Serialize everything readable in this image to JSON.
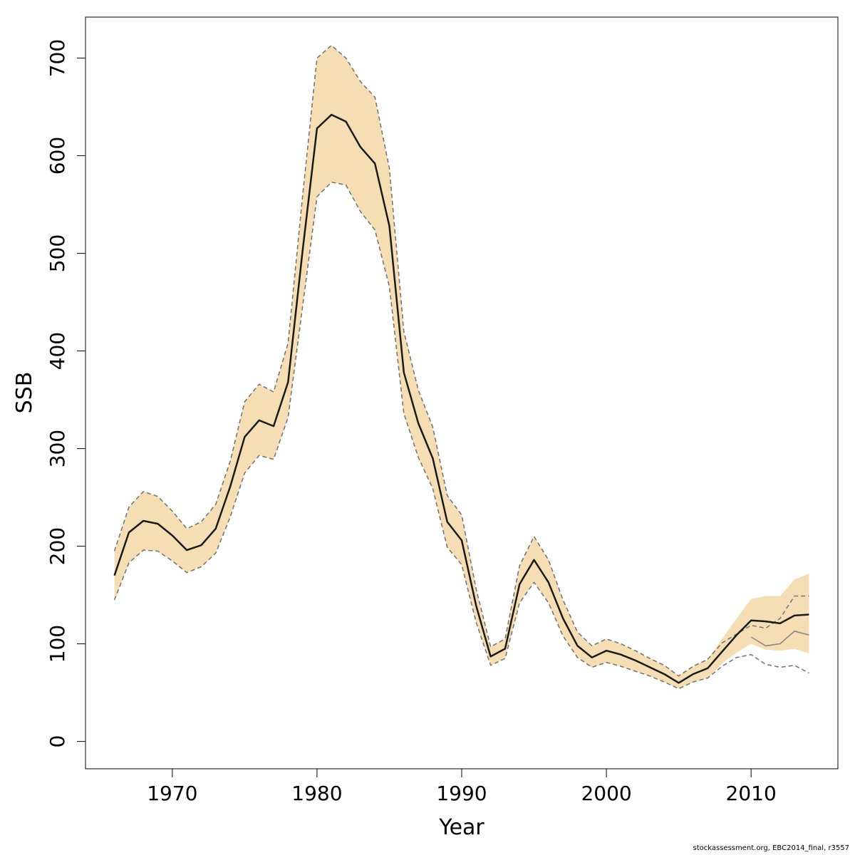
{
  "chart_data": {
    "type": "line",
    "xlabel": "Year",
    "ylabel": "SSB",
    "xlim": [
      1964,
      2016
    ],
    "ylim": [
      -28,
      742
    ],
    "x_ticks": [
      1970,
      1980,
      1990,
      2000,
      2010
    ],
    "y_ticks": [
      0,
      100,
      200,
      300,
      400,
      500,
      600,
      700
    ],
    "grid": false,
    "years": [
      1966,
      1967,
      1968,
      1969,
      1970,
      1971,
      1972,
      1973,
      1974,
      1975,
      1976,
      1977,
      1978,
      1979,
      1980,
      1981,
      1982,
      1983,
      1984,
      1985,
      1986,
      1987,
      1988,
      1989,
      1990,
      1991,
      1992,
      1993,
      1994,
      1995,
      1996,
      1997,
      1998,
      1999,
      2000,
      2001,
      2002,
      2003,
      2004,
      2005,
      2006,
      2007,
      2008,
      2009,
      2010,
      2011,
      2012,
      2013,
      2014
    ],
    "series": [
      {
        "role": "estimate",
        "color": "#1a1a1a",
        "values": [
          170,
          214,
          226,
          223,
          211,
          196,
          201,
          218,
          261,
          312,
          329,
          323,
          368,
          502,
          628,
          642,
          635,
          609,
          592,
          528,
          378,
          326,
          290,
          225,
          206,
          139,
          87,
          95,
          161,
          186,
          163,
          126,
          98,
          86,
          93,
          89,
          83,
          76,
          69,
          60,
          69,
          75,
          92,
          109,
          124,
          123,
          121,
          129,
          130
        ]
      },
      {
        "role": "upper-bound",
        "color": "#777777",
        "dashed": true,
        "values": [
          195,
          240,
          256,
          251,
          236,
          218,
          225,
          243,
          287,
          348,
          366,
          358,
          408,
          558,
          700,
          713,
          700,
          676,
          660,
          587,
          420,
          360,
          322,
          252,
          232,
          156,
          97,
          105,
          180,
          210,
          186,
          145,
          112,
          98,
          105,
          100,
          93,
          85,
          78,
          67,
          77,
          84,
          101,
          110,
          119,
          116,
          126,
          149,
          149
        ]
      },
      {
        "role": "lower-bound",
        "color": "#777777",
        "dashed": true,
        "values": [
          145,
          183,
          196,
          195,
          185,
          173,
          179,
          193,
          230,
          275,
          293,
          289,
          332,
          445,
          558,
          573,
          570,
          543,
          524,
          466,
          336,
          291,
          259,
          199,
          181,
          122,
          78,
          85,
          142,
          163,
          142,
          108,
          86,
          76,
          81,
          77,
          72,
          67,
          61,
          54,
          61,
          65,
          77,
          86,
          89,
          79,
          76,
          78,
          70
        ]
      },
      {
        "role": "secondary-estimate",
        "color": "#888888",
        "values": [
          null,
          null,
          null,
          null,
          null,
          null,
          null,
          null,
          null,
          null,
          null,
          null,
          null,
          null,
          null,
          null,
          null,
          null,
          null,
          null,
          null,
          null,
          null,
          null,
          null,
          null,
          null,
          null,
          null,
          null,
          null,
          null,
          null,
          null,
          null,
          null,
          null,
          null,
          null,
          null,
          null,
          null,
          null,
          null,
          107,
          98,
          100,
          113,
          109
        ]
      }
    ],
    "band": {
      "color": "#f5deb3",
      "upper": [
        195,
        240,
        256,
        251,
        236,
        218,
        225,
        243,
        287,
        348,
        366,
        358,
        408,
        558,
        700,
        713,
        700,
        676,
        660,
        587,
        420,
        360,
        322,
        252,
        232,
        156,
        97,
        105,
        180,
        210,
        186,
        145,
        112,
        98,
        105,
        100,
        93,
        85,
        78,
        67,
        77,
        84,
        105,
        126,
        146,
        149,
        149,
        166,
        172
      ],
      "lower": [
        145,
        183,
        196,
        195,
        185,
        173,
        179,
        193,
        230,
        275,
        293,
        289,
        332,
        445,
        558,
        573,
        570,
        543,
        524,
        466,
        336,
        291,
        259,
        199,
        181,
        122,
        78,
        85,
        142,
        163,
        142,
        108,
        86,
        76,
        81,
        77,
        72,
        67,
        61,
        54,
        61,
        65,
        80,
        91,
        100,
        94,
        93,
        95,
        90
      ]
    }
  },
  "footer": "stockassessment.org, EBC2014_final, r3557"
}
